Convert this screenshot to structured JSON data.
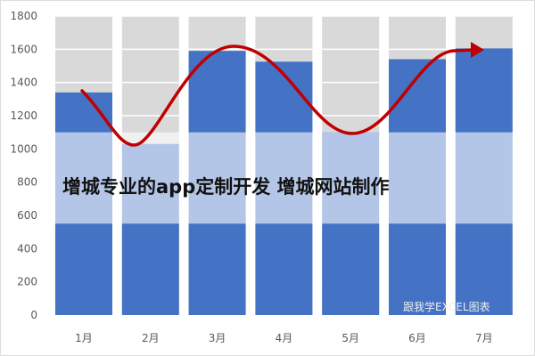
{
  "chart_data": {
    "type": "bar",
    "categories": [
      "1月",
      "2月",
      "3月",
      "4月",
      "5月",
      "6月",
      "7月"
    ],
    "series": [
      {
        "values": [
          1340,
          1030,
          1590,
          1525,
          1100,
          1540,
          1605
        ],
        "color": "#4472c4"
      },
      {
        "values": [
          1800,
          1800,
          1800,
          1800,
          1800,
          1800,
          1800
        ],
        "color": "#d9d9d9"
      }
    ],
    "yticks": [
      0,
      200,
      400,
      600,
      800,
      1000,
      1200,
      1400,
      1600,
      1800
    ],
    "ylim": [
      0,
      1800
    ],
    "grid": true,
    "trend_line": {
      "color": "#c00000",
      "arrow": true
    },
    "title": "",
    "xlabel": "",
    "ylabel": ""
  },
  "overlay": {
    "caption": "增城专业的app定制开发 增城网站制作",
    "watermark": "跟我学EXCEL图表"
  }
}
